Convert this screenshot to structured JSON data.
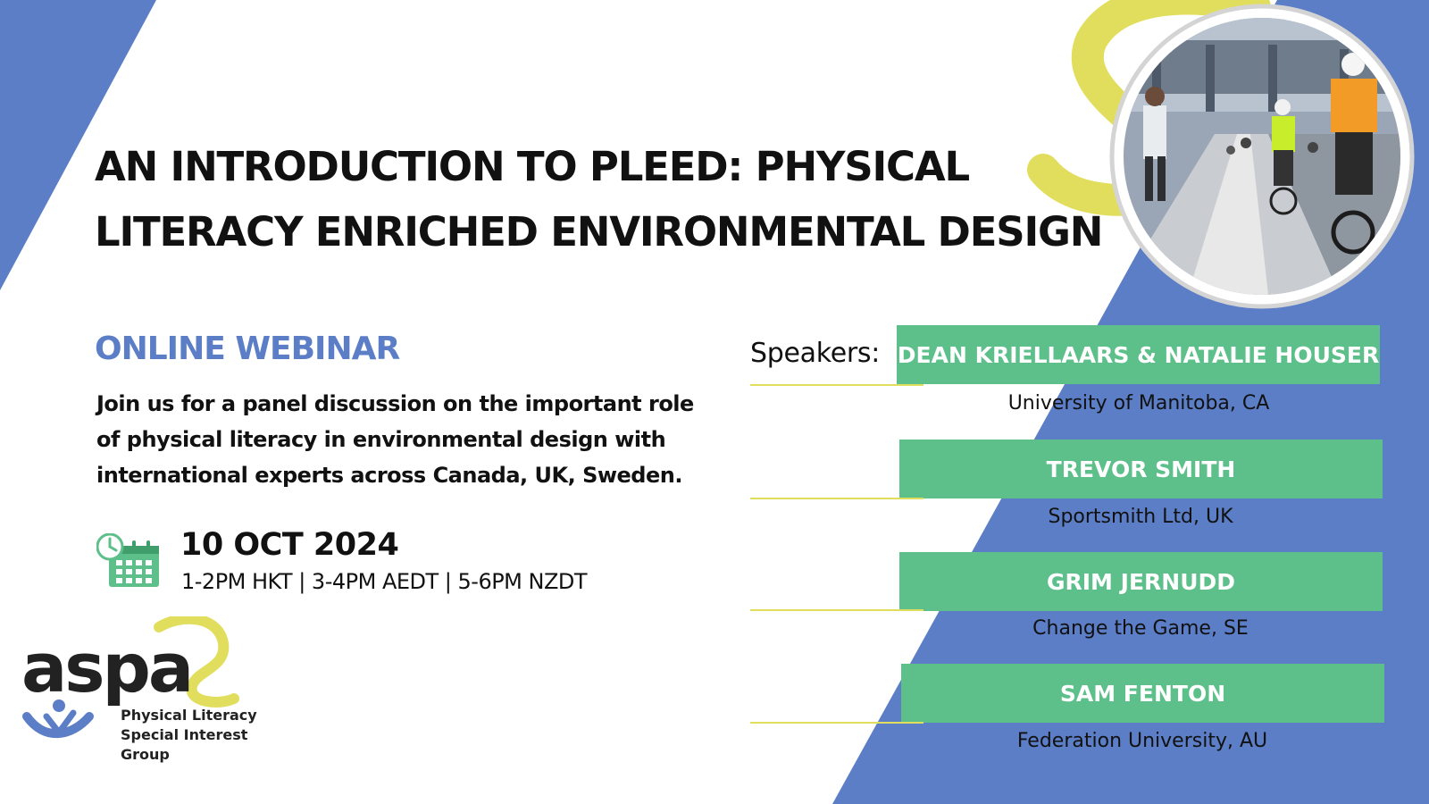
{
  "colors": {
    "blue": "#5b7ec7",
    "green": "#5dbf8a",
    "yellow": "#e2de5d",
    "dark": "#111111"
  },
  "title": {
    "line1": "AN INTRODUCTION TO PLEED: PHYSICAL",
    "line2": "LITERACY ENRICHED ENVIRONMENTAL DESIGN"
  },
  "webinar_label": "ONLINE WEBINAR",
  "description": "Join us for a panel discussion on the important role of physical literacy in environmental design with international experts across Canada, UK, Sweden.",
  "event": {
    "icon": "calendar-clock-icon",
    "date": "10 OCT 2024",
    "times": "1-2PM HKT | 3-4PM AEDT | 5-6PM NZDT"
  },
  "logo": {
    "wordmark": "aspa",
    "subtitle_lines": [
      "Physical Literacy",
      "Special Interest",
      "Group"
    ]
  },
  "photo": {
    "icon": "cyclists-commuting-photo"
  },
  "speakers_label": "Speakers:",
  "speakers": [
    {
      "name": "DEAN KRIELLAARS & NATALIE HOUSER",
      "affiliation": "University of Manitoba, CA"
    },
    {
      "name": "TREVOR SMITH",
      "affiliation": "Sportsmith Ltd, UK"
    },
    {
      "name": "GRIM JERNUDD",
      "affiliation": "Change the Game, SE"
    },
    {
      "name": "SAM FENTON",
      "affiliation": "Federation University, AU"
    }
  ]
}
